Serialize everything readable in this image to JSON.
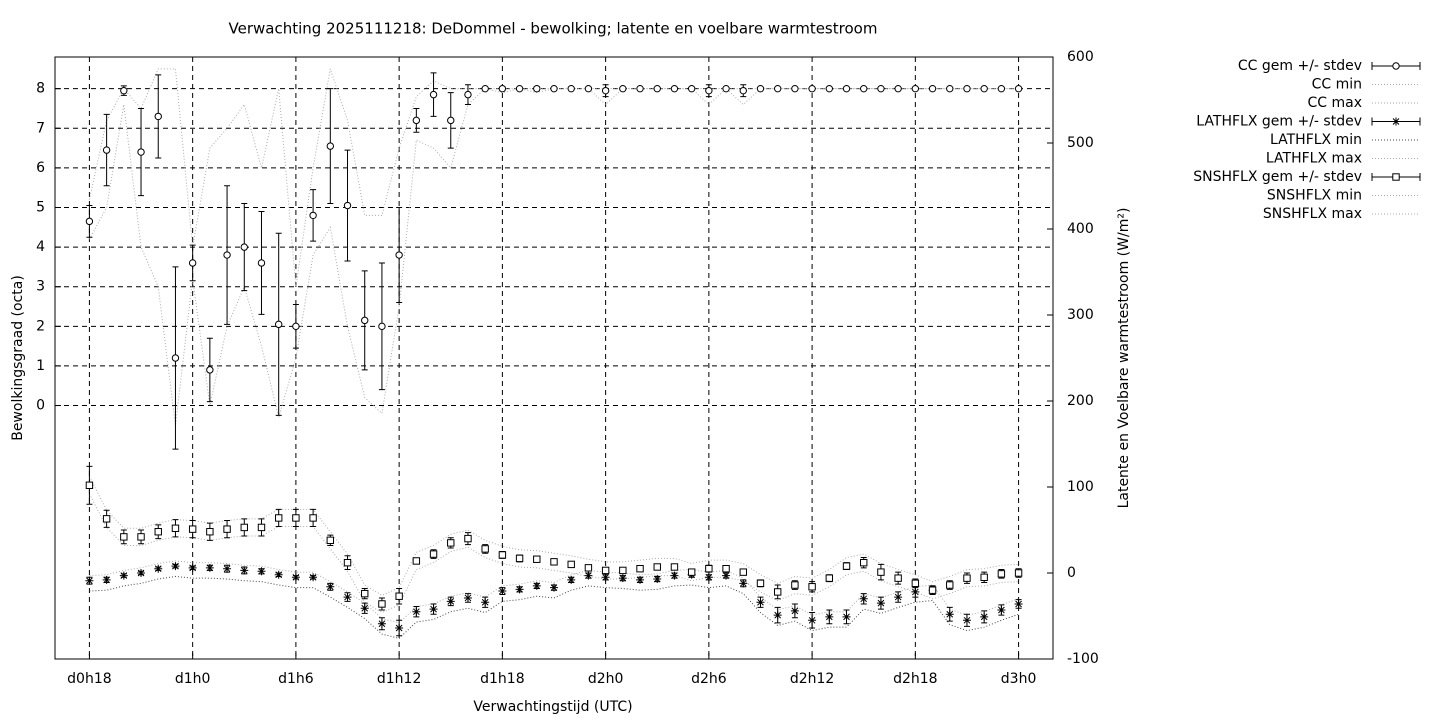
{
  "chart_data": {
    "type": "errorbar",
    "title": "Verwachting 2025111218: DeDommel - bewolking; latente en voelbare warmtestroom",
    "xlabel": "Verwachtingstijd (UTC)",
    "ylabel": "Bewolkingsgraad (octa)",
    "y2label": "Latente en Voelbare warmtestroom (W/m²)",
    "x": [
      18,
      19,
      20,
      21,
      22,
      23,
      24,
      25,
      26,
      27,
      28,
      29,
      30,
      31,
      32,
      33,
      34,
      35,
      36,
      37,
      38,
      39,
      40,
      41,
      42,
      43,
      44,
      45,
      46,
      47,
      48,
      49,
      50,
      51,
      52,
      53,
      54,
      55,
      56,
      57,
      58,
      59,
      60,
      61,
      62,
      63,
      64,
      65,
      66,
      67,
      68,
      69,
      70,
      71,
      72
    ],
    "xlim": [
      16,
      74
    ],
    "xticks": [
      {
        "value": 18,
        "label": "d0h18"
      },
      {
        "value": 24,
        "label": "d1h0"
      },
      {
        "value": 30,
        "label": "d1h6"
      },
      {
        "value": 36,
        "label": "d1h12"
      },
      {
        "value": 42,
        "label": "d1h18"
      },
      {
        "value": 48,
        "label": "d2h0"
      },
      {
        "value": 54,
        "label": "d2h6"
      },
      {
        "value": 60,
        "label": "d2h12"
      },
      {
        "value": 66,
        "label": "d2h18"
      },
      {
        "value": 72,
        "label": "d3h0"
      }
    ],
    "ylim": [
      -6.4,
      8.8
    ],
    "yticks": [
      0,
      1,
      2,
      3,
      4,
      5,
      6,
      7,
      8
    ],
    "y2lim": [
      -100,
      600
    ],
    "y2ticks": [
      -100,
      0,
      100,
      200,
      300,
      400,
      500,
      600
    ],
    "grid": true,
    "legend": "outside-top-right",
    "series": [
      {
        "name": "CC gem +/- stdev",
        "kind": "errorbar",
        "marker": "circle",
        "axis": "y",
        "color": "#000000",
        "values": [
          4.65,
          6.45,
          7.95,
          6.4,
          7.3,
          1.2,
          3.6,
          0.9,
          3.8,
          4.0,
          3.6,
          2.05,
          2.0,
          4.8,
          6.55,
          5.05,
          2.15,
          2.0,
          3.8,
          7.2,
          7.85,
          7.2,
          7.85,
          8,
          8,
          8,
          8,
          8,
          8,
          8,
          7.95,
          8,
          8,
          8,
          8,
          8,
          7.95,
          8,
          7.95,
          8,
          8,
          8,
          8,
          8,
          8,
          8,
          8,
          8,
          8,
          8,
          8,
          8,
          8,
          8,
          8
        ],
        "stdev": [
          0.4,
          0.9,
          0.12,
          1.1,
          1.05,
          2.3,
          0.45,
          0.8,
          1.75,
          1.1,
          1.3,
          2.3,
          0.55,
          0.65,
          1.45,
          1.4,
          1.25,
          1.6,
          1.2,
          0.3,
          0.55,
          0.7,
          0.25,
          0,
          0.05,
          0,
          0.05,
          0,
          0,
          0,
          0.15,
          0,
          0,
          0,
          0,
          0,
          0.15,
          0,
          0.15,
          0,
          0,
          0,
          0,
          0,
          0,
          0,
          0,
          0,
          0,
          0,
          0,
          0,
          0,
          0,
          0
        ]
      },
      {
        "name": "CC min",
        "kind": "line",
        "axis": "y",
        "color": "#aaaaaa",
        "values": [
          4.2,
          5,
          7.6,
          4,
          3,
          -0.5,
          3.2,
          0,
          2,
          3,
          1.5,
          -0.3,
          1.2,
          3.8,
          4.5,
          2,
          0.2,
          -0.2,
          2.5,
          6.7,
          6.5,
          6,
          7.6,
          8,
          7.9,
          8,
          7.9,
          8,
          8,
          8,
          7.6,
          8,
          8,
          8,
          8,
          8,
          7.6,
          8,
          7.6,
          8,
          8,
          8,
          8,
          8,
          8,
          8,
          8,
          8,
          8,
          8,
          8,
          8,
          8,
          8,
          8
        ]
      },
      {
        "name": "CC max",
        "kind": "line",
        "axis": "y",
        "color": "#aaaaaa",
        "values": [
          5.2,
          7.2,
          8,
          7.5,
          8.5,
          8.5,
          4,
          6.5,
          7,
          7.6,
          6,
          8,
          3,
          6,
          8.5,
          7.2,
          4.8,
          4.8,
          6.5,
          7.8,
          8.2,
          8,
          8,
          8,
          8,
          8,
          8,
          8,
          8,
          8,
          8,
          8,
          8,
          8,
          8,
          8,
          8,
          8,
          8,
          8,
          8,
          8,
          8,
          8,
          8,
          8,
          8,
          8,
          8,
          8,
          8,
          8,
          8,
          8,
          8
        ]
      },
      {
        "name": "LATHFLX gem +/- stdev",
        "kind": "errorbar",
        "marker": "star",
        "axis": "y2",
        "color": "#000000",
        "values": [
          -9,
          -8,
          -3,
          0,
          5,
          8,
          6,
          6,
          5,
          3,
          2,
          -2,
          -5,
          -5,
          -16,
          -28,
          -41,
          -59,
          -64,
          -45,
          -42,
          -33,
          -29,
          -34,
          -21,
          -19,
          -15,
          -17,
          -8,
          -3,
          -5,
          -6,
          -8,
          -7,
          -3,
          -2,
          -5,
          -3,
          -12,
          -34,
          -49,
          -44,
          -55,
          -51,
          -51,
          -30,
          -35,
          -28,
          -22,
          -20,
          -48,
          -55,
          -51,
          -43,
          -36
        ],
        "stdev": [
          4,
          3,
          2,
          2,
          2,
          2,
          2,
          3,
          4,
          4,
          3,
          2,
          2,
          2,
          4,
          5,
          6,
          7,
          9,
          6,
          6,
          5,
          5,
          6,
          4,
          3,
          3,
          3,
          3,
          3,
          3,
          3,
          3,
          3,
          3,
          3,
          3,
          3,
          4,
          6,
          9,
          8,
          9,
          8,
          8,
          6,
          7,
          6,
          6,
          5,
          8,
          7,
          7,
          6,
          5
        ]
      },
      {
        "name": "LATHFLX min",
        "kind": "line",
        "axis": "y2",
        "color": "#444444",
        "values": [
          -21,
          -20,
          -15,
          -12,
          -7,
          -4,
          -6,
          -6,
          -7,
          -9,
          -10,
          -14,
          -17,
          -17,
          -28,
          -40,
          -53,
          -71,
          -76,
          -57,
          -54,
          -45,
          -41,
          -46,
          -33,
          -31,
          -27,
          -29,
          -20,
          -15,
          -17,
          -18,
          -20,
          -19,
          -15,
          -14,
          -17,
          -15,
          -24,
          -46,
          -61,
          -56,
          -67,
          -63,
          -63,
          -42,
          -47,
          -40,
          -34,
          -32,
          -60,
          -67,
          -63,
          -55,
          -48
        ]
      },
      {
        "name": "LATHFLX max",
        "kind": "line",
        "axis": "y2",
        "color": "#aaaaaa",
        "values": [
          -3,
          -2,
          3,
          6,
          11,
          14,
          12,
          12,
          11,
          9,
          8,
          4,
          1,
          1,
          -10,
          -22,
          -35,
          -53,
          -58,
          -39,
          -36,
          -27,
          -23,
          -28,
          -15,
          -13,
          -9,
          -11,
          -2,
          3,
          1,
          0,
          -2,
          -1,
          3,
          4,
          1,
          3,
          -6,
          -28,
          -43,
          -38,
          -49,
          -45,
          -45,
          -24,
          -29,
          -22,
          -16,
          -14,
          -42,
          -49,
          -45,
          -37,
          -30
        ]
      },
      {
        "name": "SNSHFLX gem +/- stdev",
        "kind": "errorbar",
        "marker": "square",
        "axis": "y2",
        "color": "#000000",
        "values": [
          102,
          63,
          42,
          42,
          48,
          52,
          51,
          48,
          51,
          53,
          53,
          64,
          64,
          64,
          38,
          12,
          -24,
          -36,
          -27,
          14,
          22,
          35,
          40,
          28,
          21,
          17,
          16,
          13,
          10,
          6,
          3,
          3,
          5,
          7,
          7,
          1,
          5,
          5,
          1,
          -12,
          -22,
          -14,
          -16,
          -6,
          8,
          12,
          1,
          -6,
          -12,
          -20,
          -14,
          -6,
          -5,
          -1,
          0
        ],
        "stdev": [
          22,
          10,
          8,
          8,
          8,
          10,
          10,
          10,
          10,
          10,
          10,
          10,
          10,
          10,
          6,
          8,
          6,
          7,
          9,
          3,
          5,
          6,
          7,
          5,
          4,
          4,
          3,
          3,
          3,
          3,
          3,
          3,
          3,
          3,
          3,
          3,
          4,
          3,
          3,
          4,
          8,
          5,
          6,
          4,
          4,
          6,
          9,
          7,
          5,
          5,
          5,
          6,
          6,
          5,
          5
        ]
      },
      {
        "name": "SNSHFLX min",
        "kind": "line",
        "axis": "y2",
        "color": "#aaaaaa",
        "values": [
          92,
          53,
          32,
          32,
          38,
          42,
          41,
          38,
          41,
          43,
          43,
          54,
          54,
          54,
          28,
          2,
          -34,
          -46,
          -37,
          4,
          12,
          25,
          30,
          18,
          11,
          7,
          6,
          3,
          0,
          -4,
          -7,
          -7,
          -5,
          -3,
          -3,
          -9,
          -5,
          -5,
          -9,
          -22,
          -32,
          -24,
          -26,
          -16,
          -2,
          2,
          -9,
          -16,
          -22,
          -30,
          -24,
          -16,
          -15,
          -11,
          -10
        ]
      },
      {
        "name": "SNSHFLX max",
        "kind": "line",
        "axis": "y2",
        "color": "#aaaaaa",
        "values": [
          112,
          73,
          52,
          52,
          58,
          62,
          61,
          58,
          61,
          63,
          63,
          74,
          74,
          74,
          48,
          22,
          -14,
          -26,
          -17,
          24,
          32,
          45,
          50,
          38,
          31,
          27,
          26,
          23,
          20,
          16,
          13,
          13,
          15,
          17,
          17,
          11,
          15,
          15,
          11,
          -2,
          -12,
          -4,
          -6,
          4,
          18,
          22,
          11,
          4,
          -2,
          -10,
          -4,
          4,
          5,
          9,
          10
        ]
      }
    ]
  }
}
